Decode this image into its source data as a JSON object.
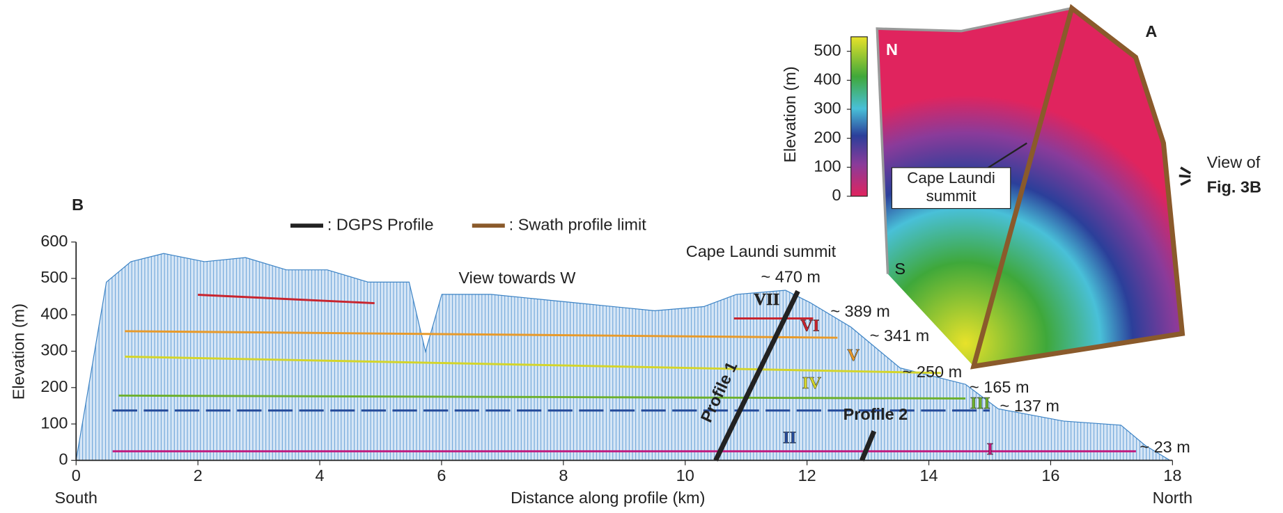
{
  "chart_data": [
    {
      "type": "line",
      "panel_label": "B",
      "title": "View towards W",
      "x_label": "Distance along profile (km)",
      "y_label": "Elevation (m)",
      "x_start_label": "South",
      "x_end_label": "North",
      "xlim": [
        0,
        18
      ],
      "xticks": [
        0,
        2,
        4,
        6,
        8,
        10,
        12,
        14,
        16,
        18
      ],
      "ylim": [
        0,
        600
      ],
      "yticks": [
        0,
        100,
        200,
        300,
        400,
        500,
        600
      ],
      "summit_label": "Cape Laundi summit",
      "legend": [
        {
          "name": ": DGPS Profile",
          "color": "#222222"
        },
        {
          "name": ": Swath profile limit",
          "color": "#8a5a2b"
        }
      ],
      "terraces": [
        {
          "color": "#c0177c",
          "x": [
            0.6,
            17.4
          ],
          "values": [
            25,
            25
          ]
        },
        {
          "color": "#244a99",
          "x": [
            0.6,
            15
          ],
          "values": [
            137,
            137
          ]
        },
        {
          "color": "#6cb02c",
          "x": [
            0.7,
            14.6
          ],
          "values": [
            178,
            170
          ]
        },
        {
          "color": "#d4d52a",
          "x": [
            0.8,
            14.2
          ],
          "values": [
            285,
            240
          ]
        },
        {
          "color": "#e89a2a",
          "x": [
            0.8,
            12.5
          ],
          "values": [
            355,
            337
          ]
        },
        {
          "color": "#c8242e",
          "x": [
            2,
            4.9,
            9,
            10.8,
            12.1
          ],
          "values": [
            455,
            432,
            null,
            390,
            390
          ]
        }
      ],
      "profiles": [
        {
          "name": "Profile 1",
          "color": "#222222",
          "x": [
            10.5,
            11.85
          ],
          "values": [
            0,
            465
          ]
        },
        {
          "name": "Profile 2",
          "color": "#222222",
          "x": [
            12.9,
            13.1
          ],
          "values": [
            0,
            80
          ]
        }
      ],
      "levels": [
        {
          "label": "~ 470 m",
          "value": 470
        },
        {
          "label": "~ 389 m",
          "value": 389
        },
        {
          "label": "~ 341 m",
          "value": 341
        },
        {
          "label": "~ 250 m",
          "value": 250
        },
        {
          "label": "~ 165 m",
          "value": 165
        },
        {
          "label": "~ 137 m",
          "value": 137
        },
        {
          "label": "~ 23 m",
          "value": 23
        }
      ],
      "roman_labels": [
        "VII",
        "VI",
        "V",
        "IV",
        "III",
        "II",
        "I"
      ]
    },
    {
      "type": "colorbar",
      "panel_label": "A",
      "label": "Elevation (m)",
      "clim": [
        0,
        550
      ],
      "ticks": [
        0,
        100,
        200,
        300,
        400,
        500
      ],
      "north": "N",
      "south": "S",
      "summit": "Cape Laundi summit",
      "view_text": "View of",
      "view_ref": "Fig. 3B"
    }
  ]
}
